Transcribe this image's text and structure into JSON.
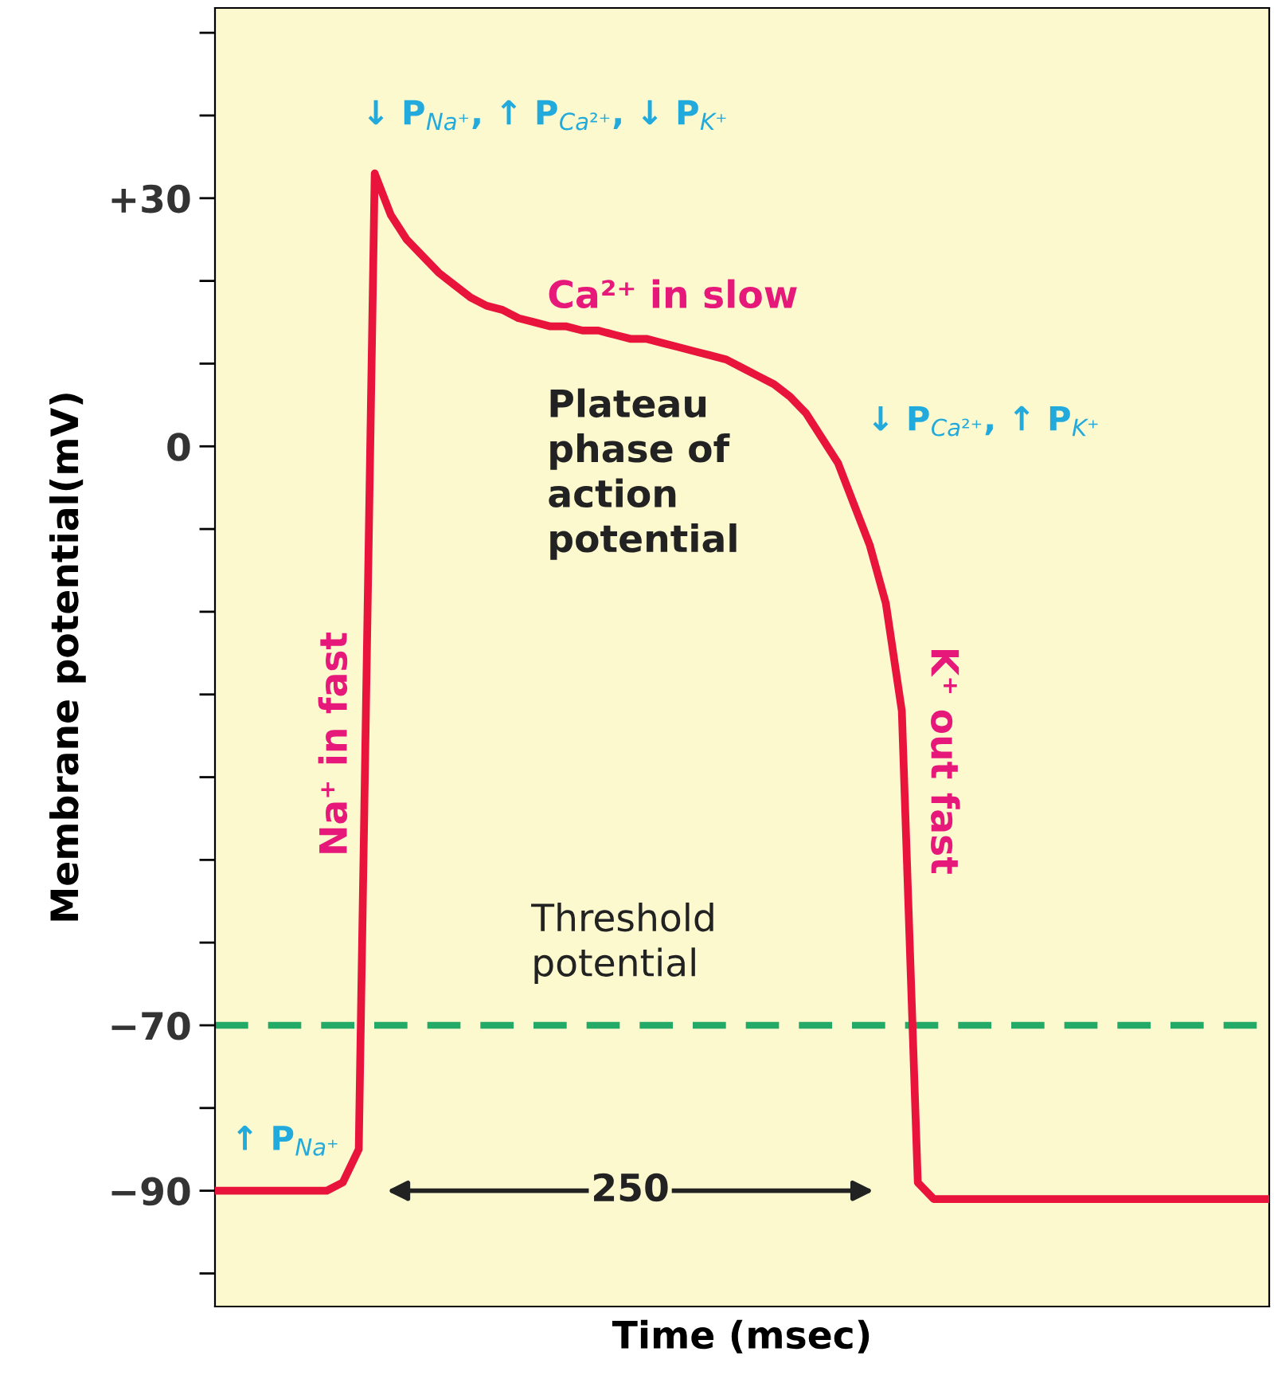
{
  "chart_data": {
    "type": "line",
    "xlabel": "Time (msec)",
    "ylabel": "Membrane potential(mV)",
    "categories": [
      null,
      null,
      null,
      null,
      null,
      null,
      null,
      null,
      null,
      null,
      null,
      null,
      null,
      null,
      null,
      null,
      null,
      null,
      null,
      null,
      null,
      null,
      null,
      null,
      null,
      null,
      null,
      null,
      null,
      null,
      null,
      null,
      null,
      null,
      null,
      null,
      null,
      null,
      null,
      null,
      null,
      null,
      null,
      null,
      null,
      null,
      null,
      null,
      null,
      null,
      null,
      null,
      null,
      null,
      null,
      null,
      null,
      null,
      null,
      null,
      null,
      null,
      null,
      null,
      null,
      null,
      null
    ],
    "series": [
      {
        "color": "#e8143c",
        "values": [
          -90,
          -90,
          -90,
          -90,
          -90,
          -90,
          -90,
          -90,
          -89,
          -85,
          33,
          28,
          25,
          23,
          21,
          19.5,
          18,
          17,
          16.5,
          15.5,
          15,
          14.5,
          14.5,
          14,
          14,
          13.5,
          13,
          13,
          12.5,
          12,
          11.5,
          11,
          10.5,
          9.5,
          8.5,
          7.5,
          6,
          4,
          1,
          -2,
          -7,
          -12,
          -19,
          -32,
          -89,
          -91,
          -91,
          -91,
          -91,
          -91,
          -91,
          -91,
          -91,
          -91,
          -91,
          -91,
          -91,
          -91,
          -91,
          -91,
          -91,
          -91,
          -91,
          -91,
          -91,
          -91,
          -91
        ]
      }
    ],
    "ylim": [
      -104,
      53
    ],
    "yticks": [
      {
        "value": -100,
        "label": null
      },
      {
        "value": -90,
        "label": "−90"
      },
      {
        "value": -80,
        "label": null
      },
      {
        "value": -70,
        "label": "−70"
      },
      {
        "value": -60,
        "label": null
      },
      {
        "value": -50,
        "label": null
      },
      {
        "value": -40,
        "label": null
      },
      {
        "value": -30,
        "label": null
      },
      {
        "value": -20,
        "label": null
      },
      {
        "value": -10,
        "label": null
      },
      0,
      {
        "value": 10,
        "label": null
      },
      {
        "value": 20,
        "label": null
      },
      {
        "value": 30,
        "label": "+30"
      },
      {
        "value": 40,
        "label": null
      },
      {
        "value": 50,
        "label": null
      }
    ],
    "ref_lines": [
      {
        "axis": "y",
        "value": -70,
        "label": "Threshold\npotential",
        "color": "#22aa66",
        "line_style": "dashed"
      }
    ],
    "annotations": [
      "↓ P$_{Na⁺}$, ↑ P$_{Ca²⁺}$, ↓ P$_{K⁺}$",
      "Ca²⁺ in slow",
      "Plateau\nphase of\naction\npotential",
      "↓ P$_{Ca²⁺}$, ↑ P$_{K⁺}$",
      "Na⁺ in fast",
      "K⁺ out fast",
      "↑ P$_{Na⁺}$",
      "250"
    ],
    "grid": false,
    "tick_labels": "y",
    "marker": "none",
    "line_style": "solid"
  }
}
